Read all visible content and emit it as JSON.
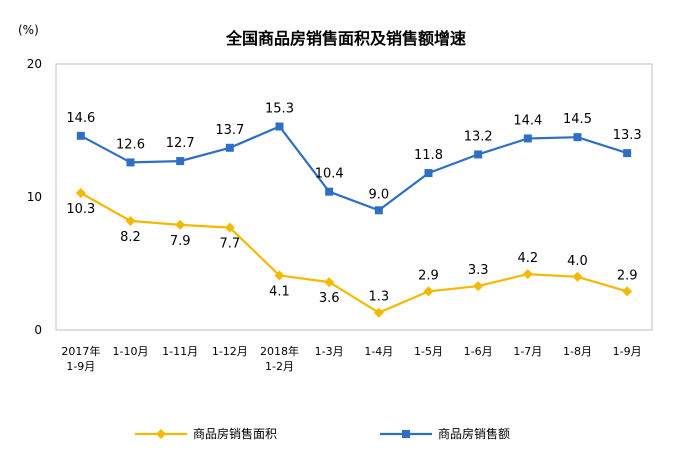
{
  "chart_data": {
    "type": "line",
    "title": "全国商品房销售面积及销售额增速",
    "unit_label": "(%)",
    "categories": [
      [
        "2017年",
        "1-9月"
      ],
      [
        "1-10月"
      ],
      [
        "1-11月"
      ],
      [
        "1-12月"
      ],
      [
        "2018年",
        "1-2月"
      ],
      [
        "1-3月"
      ],
      [
        "1-4月"
      ],
      [
        "1-5月"
      ],
      [
        "1-6月"
      ],
      [
        "1-7月"
      ],
      [
        "1-8月"
      ],
      [
        "1-9月"
      ]
    ],
    "ylim": [
      0,
      20
    ],
    "yticks": [
      0,
      10,
      20
    ],
    "series": [
      {
        "name": "商品房销售面积",
        "color": "#F5B800",
        "marker": "diamond",
        "values": [
          10.3,
          8.2,
          7.9,
          7.7,
          4.1,
          3.6,
          1.3,
          2.9,
          3.3,
          4.2,
          4.0,
          2.9
        ],
        "labels": [
          "10.3",
          "8.2",
          "7.9",
          "7.7",
          "4.1",
          "3.6",
          "1.3",
          "2.9",
          "3.3",
          "4.2",
          "4.0",
          "2.9"
        ]
      },
      {
        "name": "商品房销售额",
        "color": "#2E6FC4",
        "marker": "square",
        "values": [
          14.6,
          12.6,
          12.7,
          13.7,
          15.3,
          10.4,
          9.0,
          11.8,
          13.2,
          14.4,
          14.5,
          13.3
        ],
        "labels": [
          "14.6",
          "12.6",
          "12.7",
          "13.7",
          "15.3",
          "10.4",
          "9.0",
          "11.8",
          "13.2",
          "14.4",
          "14.5",
          "13.3"
        ]
      }
    ],
    "legend_position": "bottom"
  }
}
